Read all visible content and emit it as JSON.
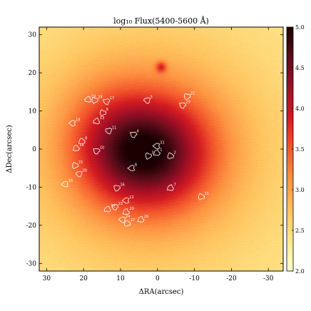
{
  "chart_data": {
    "type": "heatmap",
    "title": "log₁₀ Flux(5400-5600 Å)",
    "xlabel": "ΔRA(arcsec)",
    "ylabel": "ΔDec(arcsec)",
    "xlim": [
      32,
      -34
    ],
    "ylim": [
      -32,
      32
    ],
    "x_ticks": [
      30,
      20,
      10,
      0,
      -10,
      -20,
      -30
    ],
    "y_ticks": [
      30,
      20,
      10,
      0,
      -10,
      -20,
      -30
    ],
    "colorbar": {
      "range": [
        2.0,
        5.0
      ],
      "ticks": [
        "2.0",
        "2.5",
        "3.0",
        "3.5",
        "4.0",
        "4.5",
        "5.0"
      ],
      "colormap": [
        "#ffffcc",
        "#ffe98c",
        "#fec25c",
        "#fd9241",
        "#f4572c",
        "#d41c22",
        "#a00f26",
        "#5c0d1a",
        "#1a0000"
      ]
    },
    "field": {
      "background_level": 2.4,
      "components": [
        {
          "x": 2,
          "y": -1,
          "sigma_x": 11,
          "sigma_y": 10,
          "peak": 1.8
        },
        {
          "x": 3,
          "y": 0,
          "sigma_x": 22,
          "sigma_y": 20,
          "peak": 0.8
        },
        {
          "x": 14,
          "y": 3,
          "sigma_x": 8,
          "sigma_y": 10,
          "peak": 0.4
        },
        {
          "x": -1,
          "y": 21.5,
          "sigma_x": 1.0,
          "sigma_y": 1.0,
          "peak": 0.9
        }
      ]
    },
    "regions": [
      {
        "id": "1",
        "x": 0.2,
        "y": -1.0
      },
      {
        "id": "2",
        "x": -3.5,
        "y": -1.8
      },
      {
        "id": "3",
        "x": 2.5,
        "y": -1.8
      },
      {
        "id": "4",
        "x": 6.5,
        "y": 3.8
      },
      {
        "id": "5",
        "x": 2.8,
        "y": 12.8
      },
      {
        "id": "6",
        "x": 7.0,
        "y": -5.0
      },
      {
        "id": "7",
        "x": -3.5,
        "y": -10.2
      },
      {
        "id": "8",
        "x": 20.5,
        "y": 2.0
      },
      {
        "id": "9",
        "x": 14.8,
        "y": 9.5
      },
      {
        "id": "10",
        "x": 16.5,
        "y": -0.5
      },
      {
        "id": "11",
        "x": 13.2,
        "y": 4.8
      },
      {
        "id": "12",
        "x": 8.5,
        "y": -13.5
      },
      {
        "id": "13",
        "x": 16.5,
        "y": 7.3
      },
      {
        "id": "14",
        "x": 22.0,
        "y": 0.2
      },
      {
        "id": "15",
        "x": 22.3,
        "y": -4.3
      },
      {
        "id": "16",
        "x": 11.0,
        "y": -10.2
      },
      {
        "id": "17",
        "x": 13.8,
        "y": 12.5
      },
      {
        "id": "18",
        "x": 23.0,
        "y": 6.8
      },
      {
        "id": "19",
        "x": 18.8,
        "y": 13.0
      },
      {
        "id": "20",
        "x": 8.5,
        "y": -16.5
      },
      {
        "id": "21",
        "x": -11.8,
        "y": -12.5
      },
      {
        "id": "22",
        "x": -8.0,
        "y": 13.8
      },
      {
        "id": "23",
        "x": 11.5,
        "y": -15.2
      },
      {
        "id": "24",
        "x": 9.5,
        "y": -18.5
      },
      {
        "id": "25",
        "x": 25.0,
        "y": -9.2
      },
      {
        "id": "26",
        "x": 4.5,
        "y": -18.5
      },
      {
        "id": "27",
        "x": 8.2,
        "y": -19.5
      },
      {
        "id": "28",
        "x": 17.0,
        "y": 12.8
      },
      {
        "id": "29",
        "x": -6.8,
        "y": 11.5
      },
      {
        "id": "30",
        "x": 21.2,
        "y": -6.5
      },
      {
        "id": "31",
        "x": 0.2,
        "y": 0.8
      },
      {
        "id": "32",
        "x": 13.5,
        "y": -15.8
      }
    ]
  }
}
